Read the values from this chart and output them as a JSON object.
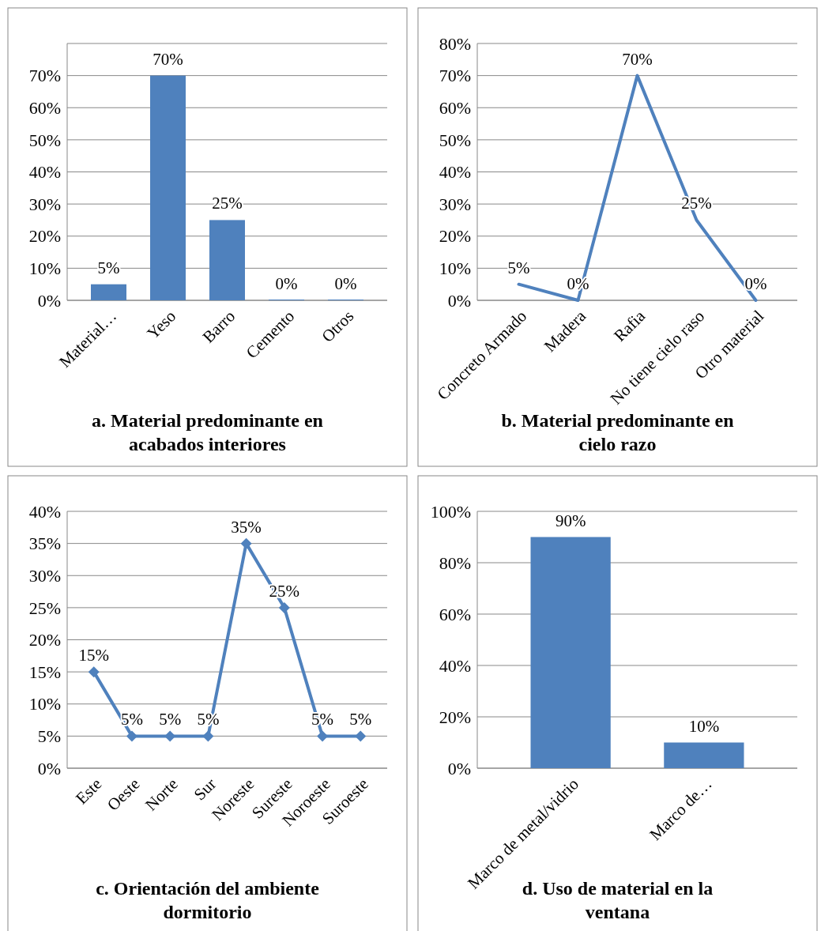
{
  "chart_data": [
    {
      "type": "bar",
      "title": "a. Material predominante en acabados interiores",
      "categories": [
        "Material…",
        "Yeso",
        "Barro",
        "Cemento",
        "Otros"
      ],
      "values": [
        5,
        70,
        25,
        0,
        0
      ],
      "value_labels": [
        "5%",
        "70%",
        "25%",
        "0%",
        "0%"
      ],
      "color": "#4f81bd",
      "ylim": [
        0,
        80
      ],
      "yticks": [
        {
          "value": 0,
          "label": "0%"
        },
        {
          "value": 10,
          "label": "10%"
        },
        {
          "value": 20,
          "label": "20%"
        },
        {
          "value": 30,
          "label": "30%"
        },
        {
          "value": 40,
          "label": "40%"
        },
        {
          "value": 50,
          "label": "50%"
        },
        {
          "value": 60,
          "label": "60%"
        },
        {
          "value": 70,
          "label": "70%"
        },
        {
          "value": 80,
          "label": null
        }
      ],
      "grid": "y"
    },
    {
      "type": "line",
      "title": "b. Material predominante en cielo razo",
      "categories": [
        "Concreto Armado",
        "Madera",
        "Rafia",
        "No tiene cielo raso",
        "Otro material"
      ],
      "values": [
        5,
        0,
        70,
        25,
        0
      ],
      "value_labels": [
        "5%",
        "0%",
        "70%",
        "25%",
        "0%"
      ],
      "color": "#4f81bd",
      "ylim": [
        0,
        80
      ],
      "yticks": [
        {
          "value": 0,
          "label": "0%"
        },
        {
          "value": 10,
          "label": "10%"
        },
        {
          "value": 20,
          "label": "20%"
        },
        {
          "value": 30,
          "label": "30%"
        },
        {
          "value": 40,
          "label": "40%"
        },
        {
          "value": 50,
          "label": "50%"
        },
        {
          "value": 60,
          "label": "60%"
        },
        {
          "value": 70,
          "label": "70%"
        },
        {
          "value": 80,
          "label": "80%"
        }
      ],
      "grid": "y"
    },
    {
      "type": "line",
      "title": "c. Orientación del ambiente dormitorio",
      "categories": [
        "Este",
        "Oeste",
        "Norte",
        "Sur",
        "Noreste",
        "Sureste",
        "Noroeste",
        "Suroeste"
      ],
      "values": [
        15,
        5,
        5,
        5,
        35,
        25,
        5,
        5
      ],
      "value_labels": [
        "15%",
        "5%",
        "5%",
        "5%",
        "35%",
        "25%",
        "5%",
        "5%"
      ],
      "color": "#4f81bd",
      "marker": "diamond",
      "ylim": [
        0,
        40
      ],
      "yticks": [
        {
          "value": 0,
          "label": "0%"
        },
        {
          "value": 5,
          "label": "5%"
        },
        {
          "value": 10,
          "label": "10%"
        },
        {
          "value": 15,
          "label": "15%"
        },
        {
          "value": 20,
          "label": "20%"
        },
        {
          "value": 25,
          "label": "25%"
        },
        {
          "value": 30,
          "label": "30%"
        },
        {
          "value": 35,
          "label": "35%"
        },
        {
          "value": 40,
          "label": "40%"
        }
      ],
      "grid": "y"
    },
    {
      "type": "bar",
      "title": "d. Uso de material en la ventana",
      "categories": [
        "Marco de metal/vidrio",
        "Marco de…"
      ],
      "values": [
        90,
        10
      ],
      "value_labels": [
        "90%",
        "10%"
      ],
      "color": "#4f81bd",
      "ylim": [
        0,
        100
      ],
      "yticks": [
        {
          "value": 0,
          "label": "0%"
        },
        {
          "value": 20,
          "label": "20%"
        },
        {
          "value": 40,
          "label": "40%"
        },
        {
          "value": 60,
          "label": "60%"
        },
        {
          "value": 80,
          "label": "80%"
        },
        {
          "value": 100,
          "label": "100%"
        }
      ],
      "grid": "y"
    }
  ]
}
